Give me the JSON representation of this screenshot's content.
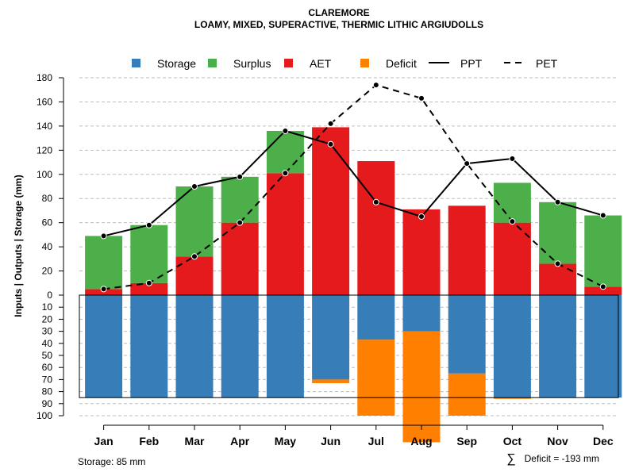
{
  "chart_data": {
    "type": "bar",
    "title": "CLAREMORE",
    "subtitle": "LOAMY, MIXED, SUPERACTIVE, THERMIC LITHIC ARGIUDOLLS",
    "ylabel": "Inputs | Outputs | Storage     (mm)",
    "categories": [
      "Jan",
      "Feb",
      "Mar",
      "Apr",
      "May",
      "Jun",
      "Jul",
      "Aug",
      "Sep",
      "Oct",
      "Nov",
      "Dec"
    ],
    "ylim_top": [
      0,
      180
    ],
    "ylim_bottom": [
      0,
      100
    ],
    "yticks_top": [
      "0",
      "20",
      "40",
      "60",
      "80",
      "100",
      "120",
      "140",
      "160",
      "180"
    ],
    "yticks_bottom": [
      "10",
      "20",
      "30",
      "40",
      "50",
      "60",
      "70",
      "80",
      "90",
      "100"
    ],
    "storage_capacity": 85,
    "series": [
      {
        "name": "Storage",
        "color": "#377EB8",
        "values": [
          85,
          85,
          85,
          85,
          85,
          70,
          37,
          30,
          65,
          85,
          85,
          85
        ]
      },
      {
        "name": "Surplus",
        "color": "#4DAF4A",
        "values": [
          44,
          48,
          58,
          38,
          35,
          0,
          0,
          0,
          0,
          33,
          51,
          59
        ]
      },
      {
        "name": "AET",
        "color": "#E41A1C",
        "values": [
          5,
          10,
          32,
          60,
          101,
          139,
          111,
          71,
          74,
          60,
          26,
          7
        ]
      },
      {
        "name": "Deficit",
        "color": "#FF7F00",
        "values": [
          0,
          0,
          0,
          0,
          0,
          3,
          63,
          92,
          35,
          1,
          0,
          0
        ]
      },
      {
        "name": "PPT",
        "style": "solid",
        "values": [
          49,
          58,
          90,
          98,
          136,
          125,
          77,
          65,
          109,
          113,
          77,
          66
        ]
      },
      {
        "name": "PET",
        "style": "dashed",
        "values": [
          5,
          10,
          32,
          60,
          101,
          142,
          174,
          163,
          109,
          61,
          26,
          7
        ]
      }
    ],
    "footer_left": "Storage: 85 mm",
    "footer_right_symbol": "∑",
    "footer_right": "Deficit = -193 mm"
  }
}
